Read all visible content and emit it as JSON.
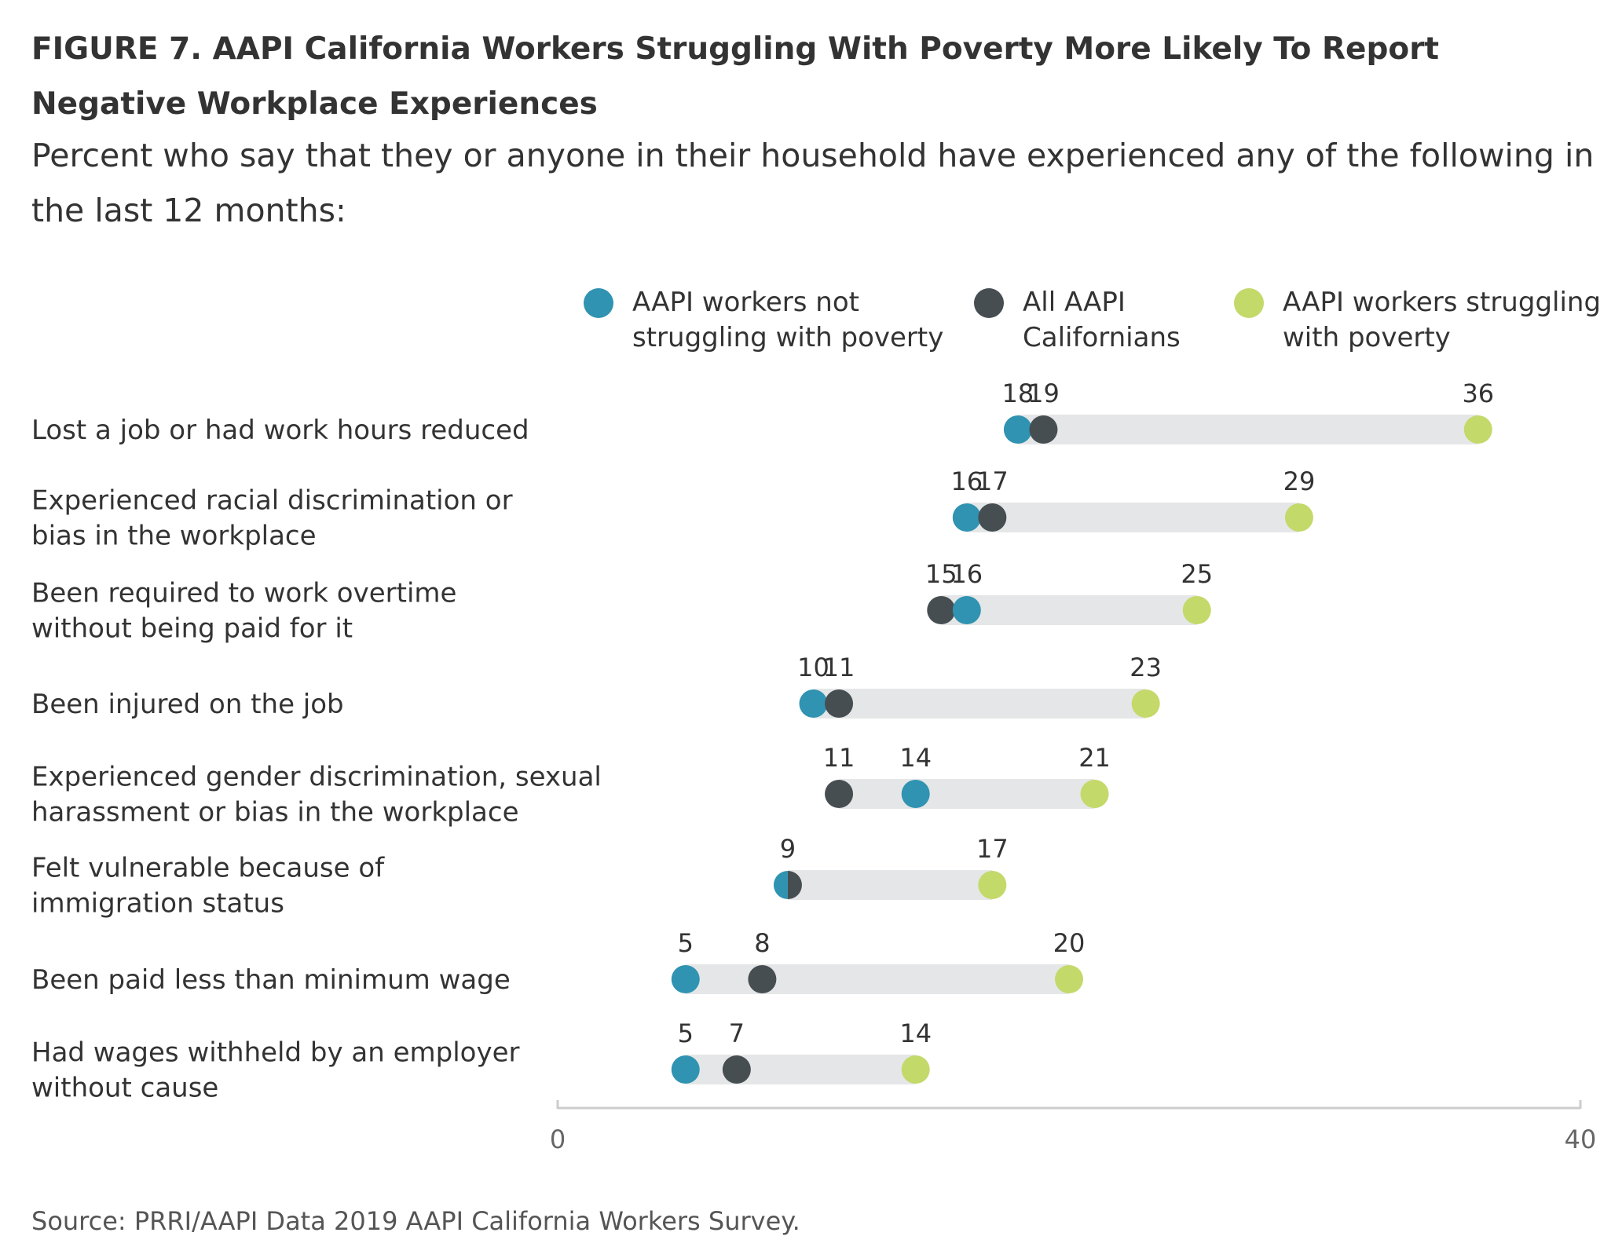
{
  "title": "FIGURE 7. AAPI California Workers Struggling With Poverty More Likely To Report Negative Workplace Experiences",
  "subtitle": "Percent who say that they or anyone in their household have experienced any of the following in the last 12 months:",
  "source": "Source: PRRI/AAPI Data 2019 AAPI California Workers Survey.",
  "colors": {
    "not_struggling": "#2f93b1",
    "all_aapi": "#474e52",
    "struggling": "#c3d96a",
    "range_bar": "#e5e6e7",
    "axis": "#cccccc"
  },
  "chart_data": {
    "type": "dot-range",
    "xlim": [
      0,
      40
    ],
    "x_tick_labels": [
      "0",
      "40"
    ],
    "legend_placement": "top",
    "series": [
      {
        "key": "not_struggling",
        "name_lines": [
          "AAPI workers not",
          "struggling with poverty"
        ]
      },
      {
        "key": "all_aapi",
        "name_lines": [
          "All AAPI",
          "Californians"
        ]
      },
      {
        "key": "struggling",
        "name_lines": [
          "AAPI workers struggling",
          "with poverty"
        ]
      }
    ],
    "categories": [
      {
        "label_lines": [
          "Lost a job or had work hours reduced"
        ],
        "not_struggling": 18,
        "all_aapi": 19,
        "struggling": 36
      },
      {
        "label_lines": [
          "Experienced racial discrimination or",
          "bias in the workplace"
        ],
        "not_struggling": 16,
        "all_aapi": 17,
        "struggling": 29
      },
      {
        "label_lines": [
          "Been required to work overtime",
          "without being paid for it"
        ],
        "not_struggling": 16,
        "all_aapi": 15,
        "struggling": 25
      },
      {
        "label_lines": [
          "Been injured on the job"
        ],
        "not_struggling": 10,
        "all_aapi": 11,
        "struggling": 23
      },
      {
        "label_lines": [
          "Experienced gender discrimination, sexual",
          "harassment or bias in the workplace"
        ],
        "not_struggling": 14,
        "all_aapi": 11,
        "struggling": 21
      },
      {
        "label_lines": [
          "Felt vulnerable because of",
          "immigration status"
        ],
        "not_struggling": 9,
        "all_aapi": 9,
        "struggling": 17
      },
      {
        "label_lines": [
          "Been paid less than minimum wage"
        ],
        "not_struggling": 5,
        "all_aapi": 8,
        "struggling": 20
      },
      {
        "label_lines": [
          "Had wages withheld by an employer",
          "without cause"
        ],
        "not_struggling": 5,
        "all_aapi": 7,
        "struggling": 14
      }
    ]
  }
}
